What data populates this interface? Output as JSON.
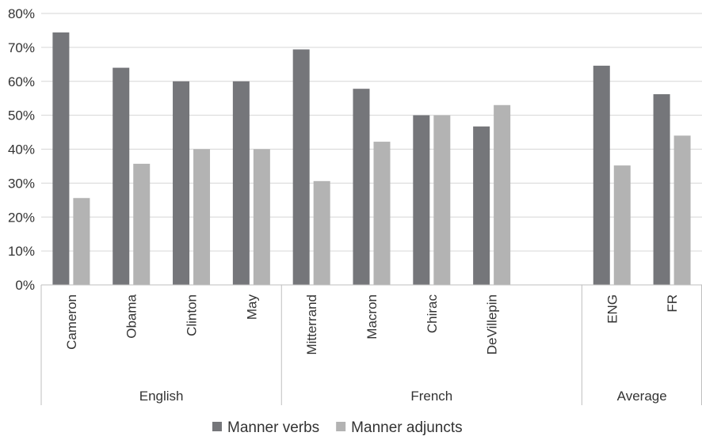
{
  "chart_data": {
    "type": "bar",
    "ylim": [
      0,
      80
    ],
    "yticks": [
      0,
      10,
      20,
      30,
      40,
      50,
      60,
      70,
      80
    ],
    "ytick_labels": [
      "0%",
      "10%",
      "20%",
      "30%",
      "40%",
      "50%",
      "60%",
      "70%",
      "80%"
    ],
    "grid": true,
    "legend_position": "bottom",
    "groups": [
      {
        "label": "English",
        "categories": [
          "Cameron",
          "Obama",
          "Clinton",
          "May"
        ]
      },
      {
        "label": "French",
        "categories": [
          "Mitterrand",
          "Macron",
          "Chirac",
          "DeVillepin",
          ""
        ]
      },
      {
        "label": "Average",
        "categories": [
          "ENG",
          "FR"
        ]
      }
    ],
    "series": [
      {
        "name": "Manner verbs",
        "color": "#75767a",
        "values": [
          74.4,
          64.0,
          60.0,
          60.0,
          69.4,
          57.8,
          50.0,
          46.7,
          null,
          64.6,
          56.2
        ]
      },
      {
        "name": "Manner adjuncts",
        "color": "#b3b3b3",
        "values": [
          25.6,
          35.7,
          40.0,
          40.0,
          30.6,
          42.2,
          50.0,
          53.0,
          null,
          35.2,
          44.0
        ]
      }
    ]
  }
}
